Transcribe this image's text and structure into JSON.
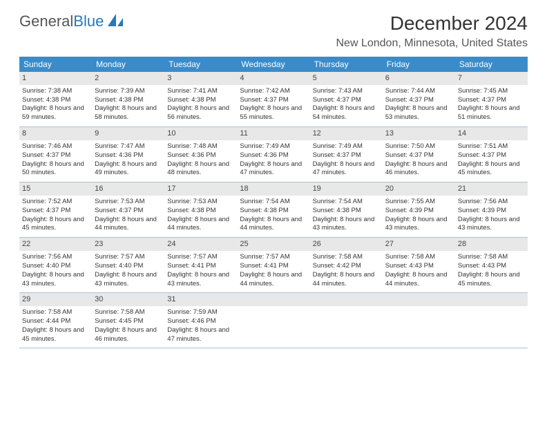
{
  "logo": {
    "text1": "General",
    "text2": "Blue"
  },
  "title": "December 2024",
  "location": "New London, Minnesota, United States",
  "colors": {
    "header_bg": "#3b8bc9",
    "header_text": "#ffffff",
    "daynum_bg": "#e8e8e8",
    "border": "#aabfd4",
    "logo_gray": "#555555",
    "logo_blue": "#2a78b8"
  },
  "weekdays": [
    "Sunday",
    "Monday",
    "Tuesday",
    "Wednesday",
    "Thursday",
    "Friday",
    "Saturday"
  ],
  "weeks": [
    [
      {
        "n": "1",
        "sunrise": "7:38 AM",
        "sunset": "4:38 PM",
        "daylight": "8 hours and 59 minutes."
      },
      {
        "n": "2",
        "sunrise": "7:39 AM",
        "sunset": "4:38 PM",
        "daylight": "8 hours and 58 minutes."
      },
      {
        "n": "3",
        "sunrise": "7:41 AM",
        "sunset": "4:38 PM",
        "daylight": "8 hours and 56 minutes."
      },
      {
        "n": "4",
        "sunrise": "7:42 AM",
        "sunset": "4:37 PM",
        "daylight": "8 hours and 55 minutes."
      },
      {
        "n": "5",
        "sunrise": "7:43 AM",
        "sunset": "4:37 PM",
        "daylight": "8 hours and 54 minutes."
      },
      {
        "n": "6",
        "sunrise": "7:44 AM",
        "sunset": "4:37 PM",
        "daylight": "8 hours and 53 minutes."
      },
      {
        "n": "7",
        "sunrise": "7:45 AM",
        "sunset": "4:37 PM",
        "daylight": "8 hours and 51 minutes."
      }
    ],
    [
      {
        "n": "8",
        "sunrise": "7:46 AM",
        "sunset": "4:37 PM",
        "daylight": "8 hours and 50 minutes."
      },
      {
        "n": "9",
        "sunrise": "7:47 AM",
        "sunset": "4:36 PM",
        "daylight": "8 hours and 49 minutes."
      },
      {
        "n": "10",
        "sunrise": "7:48 AM",
        "sunset": "4:36 PM",
        "daylight": "8 hours and 48 minutes."
      },
      {
        "n": "11",
        "sunrise": "7:49 AM",
        "sunset": "4:36 PM",
        "daylight": "8 hours and 47 minutes."
      },
      {
        "n": "12",
        "sunrise": "7:49 AM",
        "sunset": "4:37 PM",
        "daylight": "8 hours and 47 minutes."
      },
      {
        "n": "13",
        "sunrise": "7:50 AM",
        "sunset": "4:37 PM",
        "daylight": "8 hours and 46 minutes."
      },
      {
        "n": "14",
        "sunrise": "7:51 AM",
        "sunset": "4:37 PM",
        "daylight": "8 hours and 45 minutes."
      }
    ],
    [
      {
        "n": "15",
        "sunrise": "7:52 AM",
        "sunset": "4:37 PM",
        "daylight": "8 hours and 45 minutes."
      },
      {
        "n": "16",
        "sunrise": "7:53 AM",
        "sunset": "4:37 PM",
        "daylight": "8 hours and 44 minutes."
      },
      {
        "n": "17",
        "sunrise": "7:53 AM",
        "sunset": "4:38 PM",
        "daylight": "8 hours and 44 minutes."
      },
      {
        "n": "18",
        "sunrise": "7:54 AM",
        "sunset": "4:38 PM",
        "daylight": "8 hours and 44 minutes."
      },
      {
        "n": "19",
        "sunrise": "7:54 AM",
        "sunset": "4:38 PM",
        "daylight": "8 hours and 43 minutes."
      },
      {
        "n": "20",
        "sunrise": "7:55 AM",
        "sunset": "4:39 PM",
        "daylight": "8 hours and 43 minutes."
      },
      {
        "n": "21",
        "sunrise": "7:56 AM",
        "sunset": "4:39 PM",
        "daylight": "8 hours and 43 minutes."
      }
    ],
    [
      {
        "n": "22",
        "sunrise": "7:56 AM",
        "sunset": "4:40 PM",
        "daylight": "8 hours and 43 minutes."
      },
      {
        "n": "23",
        "sunrise": "7:57 AM",
        "sunset": "4:40 PM",
        "daylight": "8 hours and 43 minutes."
      },
      {
        "n": "24",
        "sunrise": "7:57 AM",
        "sunset": "4:41 PM",
        "daylight": "8 hours and 43 minutes."
      },
      {
        "n": "25",
        "sunrise": "7:57 AM",
        "sunset": "4:41 PM",
        "daylight": "8 hours and 44 minutes."
      },
      {
        "n": "26",
        "sunrise": "7:58 AM",
        "sunset": "4:42 PM",
        "daylight": "8 hours and 44 minutes."
      },
      {
        "n": "27",
        "sunrise": "7:58 AM",
        "sunset": "4:43 PM",
        "daylight": "8 hours and 44 minutes."
      },
      {
        "n": "28",
        "sunrise": "7:58 AM",
        "sunset": "4:43 PM",
        "daylight": "8 hours and 45 minutes."
      }
    ],
    [
      {
        "n": "29",
        "sunrise": "7:58 AM",
        "sunset": "4:44 PM",
        "daylight": "8 hours and 45 minutes."
      },
      {
        "n": "30",
        "sunrise": "7:58 AM",
        "sunset": "4:45 PM",
        "daylight": "8 hours and 46 minutes."
      },
      {
        "n": "31",
        "sunrise": "7:59 AM",
        "sunset": "4:46 PM",
        "daylight": "8 hours and 47 minutes."
      },
      {
        "empty": true
      },
      {
        "empty": true
      },
      {
        "empty": true
      },
      {
        "empty": true
      }
    ]
  ],
  "labels": {
    "sunrise": "Sunrise:",
    "sunset": "Sunset:",
    "daylight": "Daylight:"
  }
}
